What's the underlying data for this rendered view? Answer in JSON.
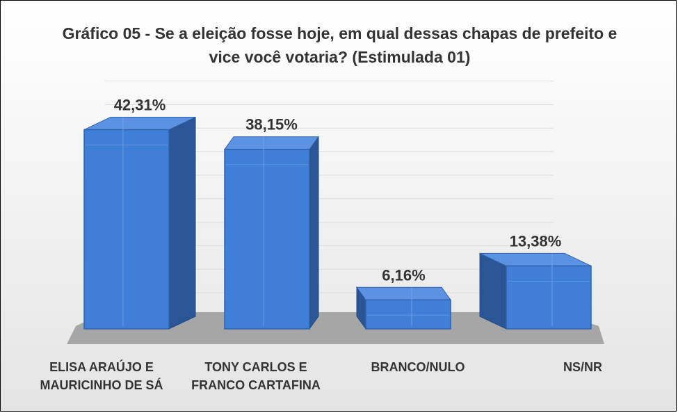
{
  "chart_data": {
    "type": "bar",
    "title": "Gráfico 05 - Se a eleição fosse hoje, em qual dessas chapas de prefeito e vice você votaria? (Estimulada 01)",
    "categories": [
      "ELISA ARAÚJO E\nMAURICINHO DE SÁ",
      "TONY CARLOS E\nFRANCO CARTAFINA",
      "BRANCO/NULO",
      "NS/NR"
    ],
    "values": [
      42.31,
      38.15,
      6.16,
      13.38
    ],
    "value_labels": [
      "42,31%",
      "38,15%",
      "6,16%",
      "13,38%"
    ],
    "unit": "%",
    "ylim": [
      0,
      50
    ],
    "grid": true,
    "legend": "none",
    "style": "3d-column",
    "colors": {
      "bar_front": "#3F7FD8",
      "bar_side": "#2B5594",
      "bar_top": "#5B93E2",
      "floor": "#a6a6a6",
      "text": "#333333"
    }
  }
}
